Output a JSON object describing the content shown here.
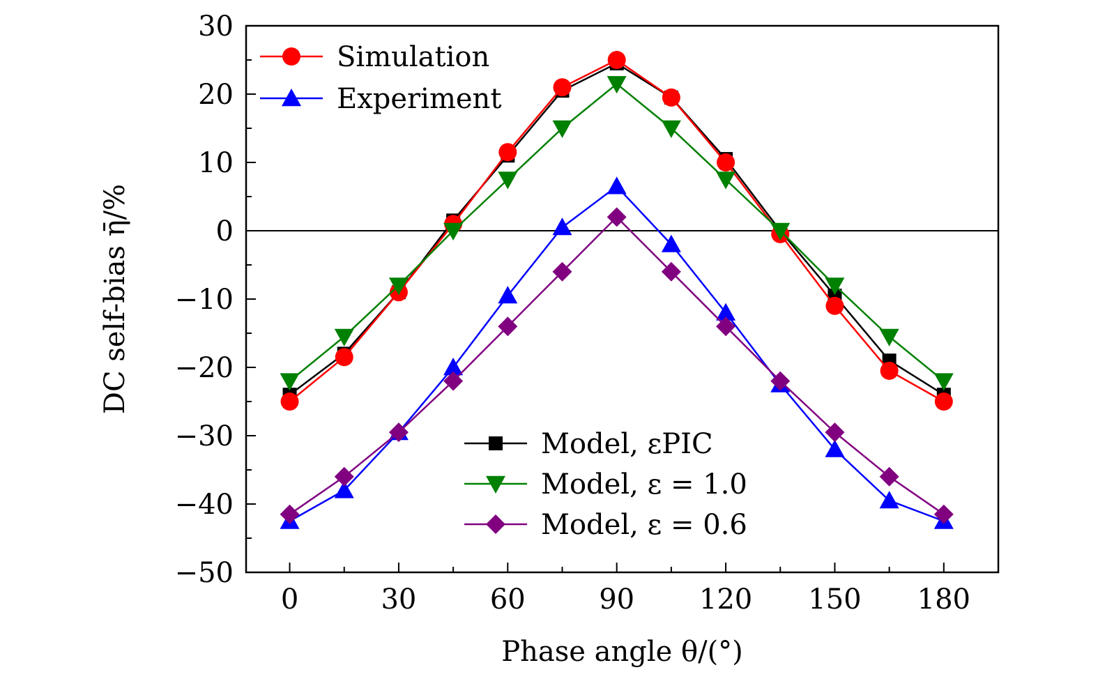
{
  "chart_data": {
    "type": "line",
    "xlabel": "Phase angle θ/(°)",
    "ylabel": "DC self-bias η̄/%",
    "xlim": [
      -12,
      195
    ],
    "ylim": [
      -50,
      30
    ],
    "xticks": [
      0,
      30,
      60,
      90,
      120,
      150,
      180
    ],
    "yticks": [
      -50,
      -40,
      -30,
      -20,
      -10,
      0,
      10,
      20,
      30
    ],
    "xtick_labels": [
      "0",
      "30",
      "60",
      "90",
      "120",
      "150",
      "180"
    ],
    "ytick_labels": [
      "−50",
      "−40",
      "−30",
      "−20",
      "−10",
      "0",
      "10",
      "20",
      "30"
    ],
    "zero_line": true,
    "grid": false,
    "x": [
      0,
      15,
      30,
      45,
      60,
      75,
      90,
      105,
      120,
      135,
      150,
      165,
      180
    ],
    "series": [
      {
        "name": "Model, εPIC",
        "color": "#000000",
        "marker": "square",
        "values": [
          -24,
          -18,
          -9,
          1.5,
          11,
          20.5,
          24.5,
          19.5,
          10.5,
          0,
          -9.5,
          -19,
          -24
        ]
      },
      {
        "name": "Simulation",
        "color": "#ff0000",
        "marker": "circle",
        "values": [
          -25,
          -18.5,
          -9,
          1,
          11.5,
          21,
          25,
          19.5,
          10,
          -0.5,
          -11,
          -20.5,
          -25
        ]
      },
      {
        "name": "Model, ε = 1.0",
        "color": "#008000",
        "marker": "triangle-down",
        "values": [
          -22,
          -15.5,
          -8,
          0,
          7.5,
          15,
          21.5,
          15,
          7.5,
          0,
          -8,
          -15.5,
          -22
        ]
      },
      {
        "name": "Experiment",
        "color": "#0000ff",
        "marker": "triangle-up",
        "values": [
          -42.5,
          -38,
          -29.5,
          -20,
          -9.5,
          0.5,
          6.5,
          -2,
          -12,
          -22.5,
          -32,
          -39.5,
          -42.5
        ]
      },
      {
        "name": "Model, ε = 0.6",
        "color": "#800080",
        "marker": "diamond",
        "values": [
          -41.5,
          -36,
          -29.5,
          -22,
          -14,
          -6,
          2,
          -6,
          -14,
          -22,
          -29.5,
          -36,
          -41.5
        ]
      }
    ],
    "legend_top_left": [
      "Simulation",
      "Experiment"
    ],
    "legend_bottom_right": [
      "Model, εPIC",
      "Model, ε = 1.0",
      "Model, ε = 0.6"
    ]
  }
}
